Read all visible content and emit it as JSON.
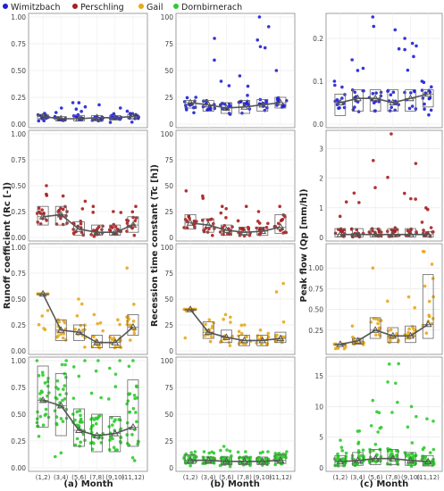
{
  "legend": {
    "position": "top-left",
    "items": [
      {
        "label": "Wimitzbach",
        "color": "#1f1fd6"
      },
      {
        "label": "Perschling",
        "color": "#a81e1e"
      },
      {
        "label": "Gail",
        "color": "#e8a81c"
      },
      {
        "label": "Dornbirnerach",
        "color": "#2ecc2e"
      }
    ]
  },
  "categories": [
    "(1,2)",
    "(3,4)",
    "(5,6)",
    "(7,8)",
    "(9,10)",
    "(11,12)"
  ],
  "column_titles": [
    "(a) Month",
    "(b) Month",
    "(c) Month"
  ],
  "y_labels": [
    "Runoff coefficient (Rc [-])",
    "Recession time constant (Tc [h])",
    "Peak flow (Qp [mm/h])"
  ],
  "chart_data": {
    "type": "scatter",
    "subtype": "jittered points with box plots and monthly mean line",
    "grid": true,
    "columns": [
      {
        "title": "(a) Month",
        "ylabel": "Runoff coefficient (Rc [-])",
        "panels": [
          {
            "catchment": "Wimitzbach",
            "ylim": [
              0,
              1.0
            ],
            "yticks": [
              "0.00",
              "0.25",
              "0.50",
              "0.75",
              "1.00"
            ],
            "mean": [
              0.07,
              0.05,
              0.05,
              0.06,
              0.06,
              0.07
            ],
            "box_q1": [
              0.05,
              0.03,
              0.03,
              0.03,
              0.04,
              0.05
            ],
            "box_q3": [
              0.09,
              0.07,
              0.08,
              0.08,
              0.08,
              0.09
            ],
            "point_max": [
              0.1,
              0.15,
              0.2,
              0.18,
              0.15,
              0.12
            ]
          },
          {
            "catchment": "Perschling",
            "ylim": [
              0,
              1.0
            ],
            "yticks": [
              "0.00",
              "0.25",
              "0.50",
              "0.75",
              "1.00"
            ],
            "mean": [
              0.2,
              0.22,
              0.08,
              0.05,
              0.05,
              0.12
            ],
            "box_q1": [
              0.12,
              0.12,
              0.02,
              0.02,
              0.02,
              0.05
            ],
            "box_q3": [
              0.3,
              0.3,
              0.15,
              0.12,
              0.12,
              0.2
            ],
            "point_max": [
              0.5,
              0.4,
              0.35,
              0.3,
              0.25,
              0.3
            ]
          },
          {
            "catchment": "Gail",
            "ylim": [
              0,
              1.0
            ],
            "yticks": [
              "0.00",
              "0.25",
              "0.50",
              "0.75",
              "1.00"
            ],
            "mean": [
              0.55,
              0.2,
              0.18,
              0.08,
              0.08,
              0.23
            ],
            "box_q1": [
              0.55,
              0.1,
              0.1,
              0.03,
              0.03,
              0.15
            ],
            "box_q3": [
              0.55,
              0.3,
              0.25,
              0.15,
              0.15,
              0.35
            ],
            "point_max": [
              0.55,
              0.3,
              0.5,
              0.35,
              0.3,
              0.8
            ]
          },
          {
            "catchment": "Dornbirnerach",
            "ylim": [
              0,
              1.0
            ],
            "yticks": [
              "0.00",
              "0.25",
              "0.50",
              "0.75",
              "1.00"
            ],
            "mean": [
              0.63,
              0.58,
              0.35,
              0.3,
              0.32,
              0.38
            ],
            "box_q1": [
              0.38,
              0.3,
              0.2,
              0.15,
              0.15,
              0.2
            ],
            "box_q3": [
              0.95,
              0.88,
              0.55,
              0.5,
              0.48,
              0.82
            ],
            "point_max": [
              1.0,
              1.0,
              1.0,
              1.0,
              1.0,
              1.0
            ]
          }
        ]
      },
      {
        "title": "(b) Month",
        "ylabel": "Recession time constant (Tc [h])",
        "panels": [
          {
            "catchment": "Wimitzbach",
            "ylim": [
              0,
              100
            ],
            "yticks": [
              "0",
              "25",
              "50",
              "75",
              "100"
            ],
            "mean": [
              20,
              18,
              15,
              16,
              18,
              20
            ],
            "box_q1": [
              15,
              12,
              10,
              10,
              12,
              15
            ],
            "box_q3": [
              22,
              22,
              20,
              22,
              23,
              25
            ],
            "point_max": [
              25,
              80,
              40,
              45,
              100,
              50
            ]
          },
          {
            "catchment": "Perschling",
            "ylim": [
              0,
              100
            ],
            "yticks": [
              "0",
              "25",
              "50",
              "75",
              "100"
            ],
            "mean": [
              14,
              12,
              7,
              5,
              6,
              10
            ],
            "box_q1": [
              8,
              5,
              2,
              2,
              2,
              4
            ],
            "box_q3": [
              22,
              18,
              12,
              10,
              10,
              22
            ],
            "point_max": [
              45,
              40,
              30,
              30,
              25,
              30
            ]
          },
          {
            "catchment": "Gail",
            "ylim": [
              0,
              100
            ],
            "yticks": [
              "0",
              "25",
              "50",
              "75",
              "100"
            ],
            "mean": [
              40,
              18,
              13,
              10,
              10,
              12
            ],
            "box_q1": [
              40,
              12,
              8,
              5,
              5,
              8
            ],
            "box_q3": [
              40,
              28,
              20,
              15,
              15,
              18
            ],
            "point_max": [
              40,
              30,
              35,
              25,
              20,
              65
            ]
          },
          {
            "catchment": "Dornbirnerach",
            "ylim": [
              0,
              100
            ],
            "yticks": [
              "0",
              "25",
              "50",
              "75",
              "100"
            ],
            "mean": [
              7,
              7,
              6,
              6,
              6,
              7
            ],
            "box_q1": [
              4,
              4,
              3,
              3,
              3,
              4
            ],
            "box_q3": [
              12,
              10,
              10,
              10,
              10,
              12
            ],
            "point_max": [
              15,
              15,
              20,
              15,
              15,
              15
            ]
          }
        ]
      },
      {
        "title": "(c) Month",
        "ylabel": "Peak flow (Qp [mm/h])",
        "panels": [
          {
            "catchment": "Wimitzbach",
            "ylim": [
              0,
              0.25
            ],
            "yticks": [
              "0.0",
              "0.1",
              "0.2"
            ],
            "mean": [
              0.05,
              0.06,
              0.06,
              0.05,
              0.06,
              0.07
            ],
            "box_q1": [
              0.02,
              0.03,
              0.03,
              0.03,
              0.03,
              0.04
            ],
            "box_q3": [
              0.07,
              0.08,
              0.08,
              0.08,
              0.08,
              0.08
            ],
            "point_max": [
              0.1,
              0.15,
              0.25,
              0.22,
              0.2,
              0.1
            ]
          },
          {
            "catchment": "Perschling",
            "ylim": [
              0,
              3.5
            ],
            "yticks": [
              "0",
              "1",
              "2",
              "3"
            ],
            "mean": [
              0.1,
              0.1,
              0.1,
              0.1,
              0.1,
              0.1
            ],
            "box_q1": [
              0.02,
              0.02,
              0.02,
              0.02,
              0.02,
              0.02
            ],
            "box_q3": [
              0.3,
              0.3,
              0.3,
              0.3,
              0.3,
              0.2
            ],
            "point_max": [
              1.2,
              1.5,
              2.6,
              3.5,
              2.5,
              1.0
            ]
          },
          {
            "catchment": "Gail",
            "ylim": [
              0,
              1.25
            ],
            "yticks": [
              "0.25",
              "0.50",
              "0.75",
              "1.00"
            ],
            "mean": [
              0.08,
              0.12,
              0.25,
              0.18,
              0.18,
              0.32
            ],
            "box_q1": [
              0.08,
              0.08,
              0.15,
              0.1,
              0.1,
              0.15
            ],
            "box_q3": [
              0.08,
              0.15,
              0.4,
              0.28,
              0.3,
              0.92
            ],
            "point_max": [
              0.08,
              0.3,
              1.0,
              0.6,
              0.65,
              1.2
            ]
          },
          {
            "catchment": "Dornbirnerach",
            "ylim": [
              0,
              17.5
            ],
            "yticks": [
              "0",
              "5",
              "10",
              "15"
            ],
            "mean": [
              1.0,
              1.2,
              1.5,
              1.5,
              1.2,
              1.0
            ],
            "box_q1": [
              0.3,
              0.4,
              0.5,
              0.5,
              0.4,
              0.3
            ],
            "box_q3": [
              2.0,
              2.5,
              3.0,
              3.0,
              2.5,
              2.0
            ],
            "point_max": [
              4.5,
              6.0,
              11.0,
              17.0,
              10.0,
              8.0
            ]
          }
        ]
      }
    ]
  }
}
